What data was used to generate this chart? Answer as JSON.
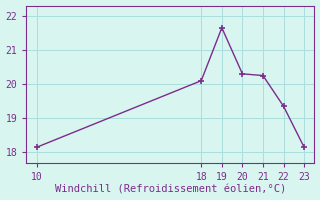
{
  "x": [
    10,
    18,
    19,
    20,
    21,
    22,
    23
  ],
  "y": [
    18.15,
    20.1,
    21.65,
    20.3,
    20.25,
    19.35,
    18.15
  ],
  "line_color": "#7b2d8b",
  "marker": "+",
  "marker_size": 4,
  "marker_linewidth": 1.2,
  "linewidth": 1.0,
  "bg_color": "#d8f5f0",
  "grid_color": "#aadddd",
  "xlabel": "Windchill (Refroidissement éolien,°C)",
  "xlabel_color": "#7b2d8b",
  "tick_color": "#7b2d8b",
  "spine_color": "#7b2d8b",
  "xlim": [
    9.5,
    23.5
  ],
  "ylim": [
    17.7,
    22.3
  ],
  "xticks": [
    10,
    18,
    19,
    20,
    21,
    22,
    23
  ],
  "yticks": [
    18,
    19,
    20,
    21,
    22
  ],
  "label_fontsize": 7.5,
  "tick_fontsize": 7
}
